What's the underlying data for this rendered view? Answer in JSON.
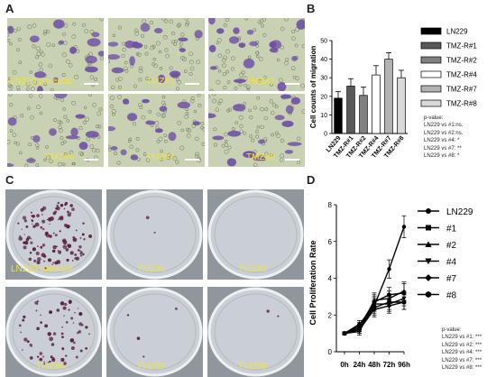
{
  "panels": {
    "a": "A",
    "b": "B",
    "c": "C",
    "d": "D"
  },
  "migration_images": [
    {
      "label": "LN229 parental"
    },
    {
      "label": "TMZ#1"
    },
    {
      "label": "TMZ#2"
    },
    {
      "label": "TMZ#4"
    },
    {
      "label": "TMZ#7"
    },
    {
      "label": "TMZ#8"
    }
  ],
  "colony_images": [
    {
      "label": "LN229 parental"
    },
    {
      "label": "TMZ#1"
    },
    {
      "label": "TMZ#2"
    },
    {
      "label": "TMZ#4"
    },
    {
      "label": "TMZ#7"
    },
    {
      "label": "TMZ#8"
    }
  ],
  "colors": {
    "caption": "#f2e23a",
    "migration_bg": "#c8d2b2",
    "cell_violet": "#6f4fa6",
    "dish_bg": "#c9cfd4",
    "colony": "#5a1f3e"
  },
  "chart_data": [
    {
      "type": "bar",
      "categories": [
        "LN229",
        "TMZ-R#1",
        "TMZ-R#2",
        "TMZ-R#4",
        "TMZ-R#7",
        "TMZ-R#8"
      ],
      "values": [
        19,
        25.5,
        20.5,
        31.5,
        40,
        30
      ],
      "errors": [
        3.5,
        4,
        4.5,
        5,
        3.5,
        4
      ],
      "fills": [
        "#000000",
        "#595959",
        "#808080",
        "#ffffff",
        "#b3b3b3",
        "#d9d9d9"
      ],
      "ylabel": "Cell counts of migration",
      "ylim": [
        0,
        50
      ],
      "yticks": [
        0,
        10,
        20,
        30,
        40,
        50
      ],
      "legend": [
        "LN229",
        "TMZ-R#1",
        "TMZ-R#2",
        "TMZ-R#4",
        "TMZ-R#7",
        "TMZ-R#8"
      ],
      "legend_placement": "right",
      "notes": [
        "p-value:",
        "LN229 vs #1:ns.",
        "LN229 vs #2:ns.",
        "LN229 vs #4: *",
        "LN229 vs #7: **",
        "LN229 vs #8: *"
      ]
    },
    {
      "type": "line",
      "x": [
        "0h",
        "24h",
        "48h",
        "72h",
        "96h"
      ],
      "ylabel": "Cell Proliferation Rate",
      "ylim": [
        0,
        8
      ],
      "yticks": [
        0,
        2,
        4,
        6,
        8
      ],
      "series": [
        {
          "name": "LN229",
          "marker": "circle",
          "values": [
            1,
            1.5,
            2.5,
            4.5,
            6.8
          ],
          "errors": [
            0.05,
            0.2,
            0.4,
            0.5,
            0.6
          ]
        },
        {
          "name": "#1",
          "marker": "square",
          "values": [
            1,
            1.3,
            2.4,
            2.7,
            2.7
          ],
          "errors": [
            0.05,
            0.2,
            0.4,
            0.4,
            0.4
          ]
        },
        {
          "name": "#2",
          "marker": "triangle-up",
          "values": [
            1,
            1.2,
            2.8,
            2.9,
            3.3
          ],
          "errors": [
            0.05,
            0.2,
            0.4,
            0.4,
            0.5
          ]
        },
        {
          "name": "#4",
          "marker": "triangle-down",
          "values": [
            1,
            1.1,
            2.6,
            2.6,
            2.9
          ],
          "errors": [
            0.05,
            0.2,
            0.4,
            0.4,
            0.4
          ]
        },
        {
          "name": "#7",
          "marker": "diamond",
          "values": [
            1,
            1.2,
            2.3,
            2.5,
            2.7
          ],
          "errors": [
            0.05,
            0.2,
            0.4,
            0.4,
            0.4
          ]
        },
        {
          "name": "#8",
          "marker": "hexagon",
          "values": [
            1,
            1.4,
            2.7,
            3.1,
            3.2
          ],
          "errors": [
            0.05,
            0.2,
            0.4,
            0.4,
            0.5
          ]
        }
      ],
      "legend_placement": "right",
      "notes": [
        "p-value:",
        "LN229 vs #1: ***",
        "LN229 vs #2: ***",
        "LN229 vs #4: ***",
        "LN229 vs #7: ***",
        "LN229 vs #8: ***"
      ]
    }
  ]
}
